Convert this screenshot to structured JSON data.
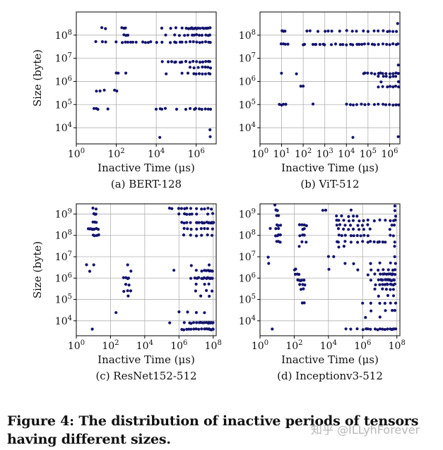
{
  "figure": {
    "caption": "Figure 4: The distribution of inactive periods of tensors having different sizes.",
    "watermark": "知乎 @ILLyhForever"
  },
  "colors": {
    "marker": "#14146e",
    "grid": "#b0b0b0",
    "axis": "#000000"
  },
  "chart_data": [
    {
      "type": "scatter",
      "subtitle": "(a) BERT-128",
      "xlabel": "Inactive Time (μs)",
      "ylabel": "Size (byte)",
      "xscale": "log",
      "yscale": "log",
      "xlim": [
        1,
        10000000
      ],
      "ylim": [
        2000,
        1000000000
      ],
      "xticks": [
        1,
        100,
        10000,
        1000000
      ],
      "xtick_labels": [
        "10^0",
        "10^2",
        "10^4",
        "10^6"
      ],
      "yticks": [
        10000,
        100000,
        1000000,
        10000000,
        100000000
      ],
      "ytick_labels": [
        "10^4",
        "10^5",
        "10^6",
        "10^7",
        "10^8"
      ],
      "grid": true,
      "bands": [
        {
          "y": 200000000,
          "x": [
            20,
            30,
            200,
            250,
            300,
            20000,
            50000,
            100000,
            200000,
            300000,
            400000,
            500000,
            600000,
            700000,
            800000,
            900000,
            1000000,
            1200000,
            1500000,
            2000000,
            2500000,
            3000000,
            3500000,
            4000000,
            5000000
          ]
        },
        {
          "y": 100000000,
          "x": [
            230,
            300,
            400,
            30000,
            80000,
            150000,
            250000,
            400000,
            600000,
            800000,
            1000000,
            1500000,
            2000000,
            3000000,
            4000000,
            5000000
          ]
        },
        {
          "y": 50000000,
          "x": [
            10,
            20,
            30,
            100,
            200,
            300,
            400,
            500,
            700,
            1000,
            2000,
            3000,
            4000,
            5000,
            10000,
            20000,
            50000,
            80000,
            100000,
            150000,
            200000,
            300000,
            500000,
            700000,
            1000000,
            1500000,
            2000000,
            3000000,
            4000000,
            5000000
          ]
        },
        {
          "y": 7000000,
          "x": [
            20000,
            40000,
            60000,
            80000,
            100000,
            150000,
            200000,
            300000,
            500000,
            700000,
            1000000,
            1500000,
            2000000,
            3000000,
            4000000,
            5000000
          ]
        },
        {
          "y": 4000000,
          "x": [
            500000,
            800000,
            1200000,
            2000000,
            3000000,
            4000000,
            5000000
          ]
        },
        {
          "y": 2200000,
          "x": [
            100,
            120,
            300,
            30000,
            200000,
            400000,
            800000,
            1000000,
            1500000,
            2000000,
            3000000,
            4000000,
            5000000
          ]
        },
        {
          "y": 400000,
          "x": [
            10,
            15,
            25,
            80,
            100
          ]
        },
        {
          "y": 65000,
          "x": [
            8,
            10,
            12,
            40,
            10000,
            15000,
            20000,
            30000,
            100000,
            300000,
            500000,
            800000,
            1000000,
            1500000,
            2000000,
            3000000,
            4000000,
            5000000
          ]
        },
        {
          "y": 8000,
          "x": [
            5000000
          ]
        },
        {
          "y": 4000,
          "x": [
            15000,
            5000000
          ]
        }
      ]
    },
    {
      "type": "scatter",
      "subtitle": "(b) ViT-512",
      "xlabel": "Inactive Time (μs)",
      "ylabel": "Size (byte)",
      "xscale": "log",
      "yscale": "log",
      "xlim": [
        1,
        3000000
      ],
      "ylim": [
        2000,
        1000000000
      ],
      "xticks": [
        1,
        10,
        100,
        1000,
        10000,
        100000,
        1000000
      ],
      "xtick_labels": [
        "10^0",
        "10^1",
        "10^2",
        "10^3",
        "10^4",
        "10^5",
        "10^6"
      ],
      "yticks": [
        10000,
        100000,
        1000000,
        10000000,
        100000000
      ],
      "ytick_labels": [
        "10^4",
        "10^5",
        "10^6",
        "10^7",
        "10^8"
      ],
      "grid": true,
      "bands": [
        {
          "y": 300000000,
          "x": [
            2500000
          ]
        },
        {
          "y": 150000000,
          "x": [
            10,
            12,
            15,
            150,
            200,
            500,
            1000,
            1500,
            2000,
            5000,
            10000,
            20000,
            30000,
            60000,
            100000,
            200000,
            300000,
            500000,
            800000,
            1000000,
            1500000,
            2000000
          ]
        },
        {
          "y": 40000000,
          "x": [
            10,
            12,
            15,
            20,
            100,
            120,
            300,
            350,
            400,
            600,
            800,
            1000,
            2000,
            3000,
            5000,
            7000,
            10000,
            15000,
            20000,
            30000,
            40000,
            50000,
            70000,
            100000,
            150000,
            200000,
            300000,
            500000,
            700000,
            1000000,
            1500000,
            2000000,
            2500000
          ]
        },
        {
          "y": 5000000,
          "x": [
            2500000
          ]
        },
        {
          "y": 2200000,
          "x": [
            10,
            50,
            60000,
            70000,
            100000,
            150000,
            200000,
            300000,
            400000,
            500000,
            700000,
            1000000,
            1500000,
            2000000,
            2500000
          ]
        },
        {
          "y": 1600000,
          "x": [
            300000,
            500000,
            700000,
            1000000,
            1500000,
            2000000
          ]
        },
        {
          "y": 1000000,
          "x": [
            400000,
            2500000
          ]
        },
        {
          "y": 600000,
          "x": [
            80,
            100,
            300000,
            500000,
            800000,
            1000000,
            1500000,
            2000000,
            2500000
          ]
        },
        {
          "y": 100000,
          "x": [
            8,
            10,
            12,
            15,
            300,
            10000,
            15000,
            20000,
            30000,
            50000,
            70000,
            100000,
            200000,
            300000,
            500000,
            700000,
            1000000,
            1500000,
            2000000,
            2500000
          ]
        },
        {
          "y": 4000,
          "x": [
            20000,
            2500000
          ]
        }
      ]
    },
    {
      "type": "scatter",
      "subtitle": "(c) ResNet152-512",
      "xlabel": "Inactive Time (μs)",
      "ylabel": "Size (byte)",
      "xscale": "log",
      "yscale": "log",
      "xlim": [
        1,
        150000000
      ],
      "ylim": [
        2000,
        3000000000
      ],
      "xticks": [
        1,
        100,
        10000,
        1000000,
        100000000
      ],
      "xtick_labels": [
        "10^0",
        "10^2",
        "10^4",
        "10^6",
        "10^8"
      ],
      "yticks": [
        10000,
        100000,
        1000000,
        10000000,
        100000000,
        1000000000
      ],
      "ytick_labels": [
        "10^4",
        "10^5",
        "10^6",
        "10^7",
        "10^8",
        "10^9"
      ],
      "grid": true,
      "bands": [
        {
          "y": 1800000000,
          "x": [
            10,
            15,
            300000,
            400000,
            1000000,
            1500000,
            2000000,
            3000000,
            5000000,
            10000000,
            20000000,
            30000000,
            50000000,
            80000000
          ]
        },
        {
          "y": 1000000000,
          "x": [
            10,
            12,
            15,
            1000000,
            2000000,
            3000000,
            4000000,
            6000000,
            10000000,
            50000000,
            90000000
          ]
        },
        {
          "y": 400000000,
          "x": [
            10,
            12,
            15,
            1500000,
            2000000,
            3000000,
            5000000,
            10000000,
            12000000,
            15000000,
            20000000,
            25000000,
            30000000,
            40000000,
            50000000,
            60000000,
            70000000,
            80000000,
            90000000,
            100000000
          ]
        },
        {
          "y": 200000000,
          "x": [
            5,
            6,
            7,
            8,
            9,
            10,
            12,
            15,
            20,
            2000000,
            3000000,
            5000000,
            10000000,
            20000000,
            30000000,
            50000000,
            90000000
          ]
        },
        {
          "y": 100000000,
          "x": [
            10,
            12,
            15,
            20,
            2000000,
            5000000,
            10000000,
            20000000,
            50000000,
            90000000
          ]
        },
        {
          "y": 4000000,
          "x": [
            4,
            10,
            1000,
            5000000,
            60000000
          ]
        },
        {
          "y": 2200000,
          "x": [
            6,
            1500,
            500000,
            10000000,
            20000000,
            30000000,
            40000000,
            50000000,
            60000000,
            70000000,
            80000000,
            90000000
          ]
        },
        {
          "y": 1000000,
          "x": [
            600,
            800,
            1000,
            1200,
            5000000,
            8000000,
            12000000,
            15000000,
            20000000,
            25000000,
            30000000,
            40000000,
            50000000,
            60000000,
            70000000,
            80000000,
            90000000
          ]
        },
        {
          "y": 500000,
          "x": [
            800,
            1200,
            10000000,
            30000000,
            60000000
          ]
        },
        {
          "y": 250000,
          "x": [
            600,
            1000,
            1500,
            10000000,
            40000000,
            80000000
          ]
        },
        {
          "y": 150000,
          "x": [
            1000,
            20000000,
            60000000
          ]
        },
        {
          "y": 25000,
          "x": [
            200,
            1000000,
            3000000,
            10000000,
            30000000
          ]
        },
        {
          "y": 8000,
          "x": [
            300000,
            2000000,
            4000000,
            5000000,
            7000000,
            10000000,
            15000000,
            20000000,
            25000000,
            30000000,
            40000000,
            50000000,
            60000000,
            70000000,
            80000000,
            90000000,
            100000000
          ]
        },
        {
          "y": 4000,
          "x": [
            8,
            1500000,
            2000000,
            3000000,
            4000000,
            5000000,
            7000000,
            10000000,
            15000000,
            20000000,
            30000000,
            40000000,
            50000000,
            60000000,
            70000000,
            80000000,
            90000000,
            100000000
          ]
        }
      ]
    },
    {
      "type": "scatter",
      "subtitle": "(d) Inceptionv3-512",
      "xlabel": "Inactive Time (μs)",
      "ylabel": "Size (byte)",
      "xscale": "log",
      "yscale": "log",
      "xlim": [
        1,
        150000000
      ],
      "ylim": [
        2000,
        3000000000
      ],
      "xticks": [
        1,
        100,
        10000,
        1000000,
        100000000
      ],
      "xtick_labels": [
        "10^0",
        "10^2",
        "10^4",
        "10^6",
        "10^8"
      ],
      "yticks": [
        10000,
        100000,
        1000000,
        10000000,
        100000000,
        1000000000
      ],
      "ytick_labels": [
        "10^4",
        "10^5",
        "10^6",
        "10^7",
        "10^8",
        "10^9"
      ],
      "grid": true,
      "bands": [
        {
          "y": 2500000000,
          "x": [
            8,
            80000000
          ]
        },
        {
          "y": 1500000000,
          "x": [
            8,
            10,
            5000,
            7000,
            200000,
            80000000
          ]
        },
        {
          "y": 800000000,
          "x": [
            10,
            12,
            30000,
            60000,
            150000,
            300000,
            500000,
            80000000
          ]
        },
        {
          "y": 500000000,
          "x": [
            30000,
            40000,
            80000,
            150000,
            300000,
            600000,
            1200000,
            2000000,
            5000000,
            10000000,
            20000000,
            40000000,
            60000000,
            80000000
          ]
        },
        {
          "y": 300000000,
          "x": [
            10,
            12,
            15,
            200,
            300,
            400,
            500,
            30000,
            50000,
            100000,
            200000,
            500000,
            1000000,
            2000000,
            50000000,
            70000000
          ]
        },
        {
          "y": 200000000,
          "x": [
            4,
            8,
            12,
            300,
            400,
            40000,
            80000,
            150000,
            300000,
            600000,
            1200000,
            2500000,
            40000000
          ]
        },
        {
          "y": 100000000,
          "x": [
            8,
            10,
            12,
            15,
            200,
            300,
            400,
            40000,
            60000,
            100000,
            200000,
            300000,
            500000,
            800000,
            1200000,
            2000000,
            40000000,
            60000000
          ]
        },
        {
          "y": 50000000,
          "x": [
            10,
            12,
            15,
            300,
            500,
            30000,
            40000,
            100000,
            200000,
            500000,
            1000000,
            2000000,
            3000000,
            5000000,
            8000000,
            10000000,
            15000000,
            20000000,
            80000000
          ]
        },
        {
          "y": 30000000,
          "x": [
            200,
            40000,
            80000,
            70000000
          ]
        },
        {
          "y": 10000000,
          "x": [
            3,
            10000,
            20000,
            80000000
          ]
        },
        {
          "y": 5000000,
          "x": [
            3,
            100000,
            300000,
            3000000,
            10000000,
            40000000,
            80000000
          ]
        },
        {
          "y": 2500000,
          "x": [
            100,
            120,
            10000,
            500000,
            3000000,
            8000000,
            15000000,
            30000000,
            60000000,
            80000000
          ]
        },
        {
          "y": 1500000,
          "x": [
            120,
            150,
            180,
            2000000,
            5000000,
            10000000,
            15000000,
            20000000,
            25000000,
            30000000,
            40000000,
            50000000,
            60000000,
            80000000
          ]
        },
        {
          "y": 800000,
          "x": [
            150,
            200,
            250,
            300,
            400,
            3000000,
            8000000,
            12000000,
            15000000,
            20000000,
            25000000,
            30000000,
            35000000,
            40000000,
            45000000,
            50000000,
            60000000,
            70000000
          ]
        },
        {
          "y": 500000,
          "x": [
            200,
            300,
            400,
            6000000,
            10000000,
            15000000,
            20000000,
            25000000,
            30000000,
            40000000,
            50000000,
            60000000,
            80000000
          ]
        },
        {
          "y": 300000,
          "x": [
            250,
            350,
            5000000,
            15000000,
            25000000,
            40000000,
            60000000
          ]
        },
        {
          "y": 150000,
          "x": [
            8000000,
            30000000,
            60000000
          ]
        },
        {
          "y": 70000,
          "x": [
            300,
            400,
            1000000,
            3000000,
            10000000,
            20000000,
            40000000,
            80000000
          ]
        },
        {
          "y": 30000,
          "x": [
            3000000,
            20000000,
            50000000,
            80000000
          ]
        },
        {
          "y": 15000,
          "x": [
            1500000,
            10000000
          ]
        },
        {
          "y": 4000,
          "x": [
            5,
            100000,
            200000,
            500000,
            1000000,
            1500000,
            2000000,
            3000000,
            5000000,
            8000000,
            10000000,
            15000000,
            20000000,
            30000000,
            40000000,
            50000000,
            60000000,
            70000000,
            80000000
          ]
        }
      ]
    }
  ]
}
